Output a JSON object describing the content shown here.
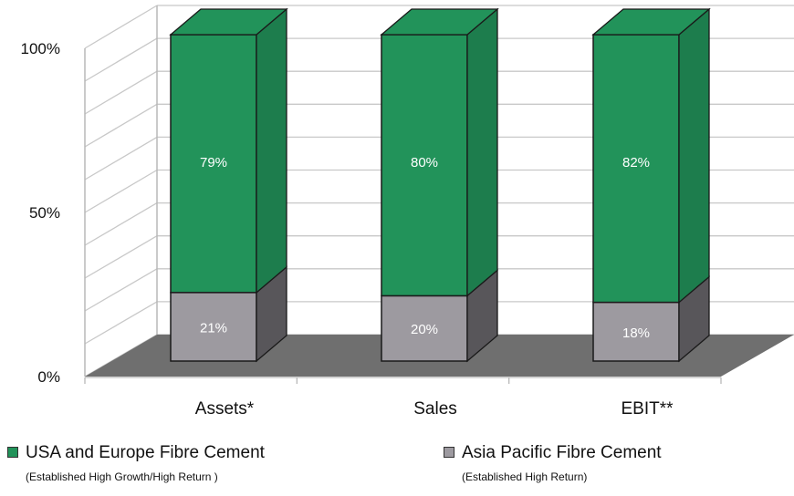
{
  "chart_data": {
    "type": "bar",
    "stacked": true,
    "percent": true,
    "three_d": true,
    "categories": [
      "Assets*",
      "Sales",
      "EBIT**"
    ],
    "series": [
      {
        "name": "Asia Pacific Fibre Cement",
        "values": [
          21,
          20,
          18
        ],
        "labels": [
          "21%",
          "20%",
          "18%"
        ],
        "color": "#9d9aa0"
      },
      {
        "name": "USA  and Europe Fibre Cement",
        "values": [
          79,
          80,
          82
        ],
        "labels": [
          "79%",
          "80%",
          "82%"
        ],
        "color": "#22935a"
      }
    ],
    "ylim": [
      0,
      100
    ],
    "yticks": [
      "0%",
      "50%",
      "100%"
    ],
    "grid": true,
    "legend_position": "bottom"
  },
  "legend": [
    {
      "label": "USA  and Europe Fibre Cement",
      "note": "(Established High Growth/High Return )",
      "color": "#22935a"
    },
    {
      "label": "Asia Pacific Fibre Cement",
      "note": "(Established High Return)",
      "color": "#9d9aa0"
    }
  ]
}
